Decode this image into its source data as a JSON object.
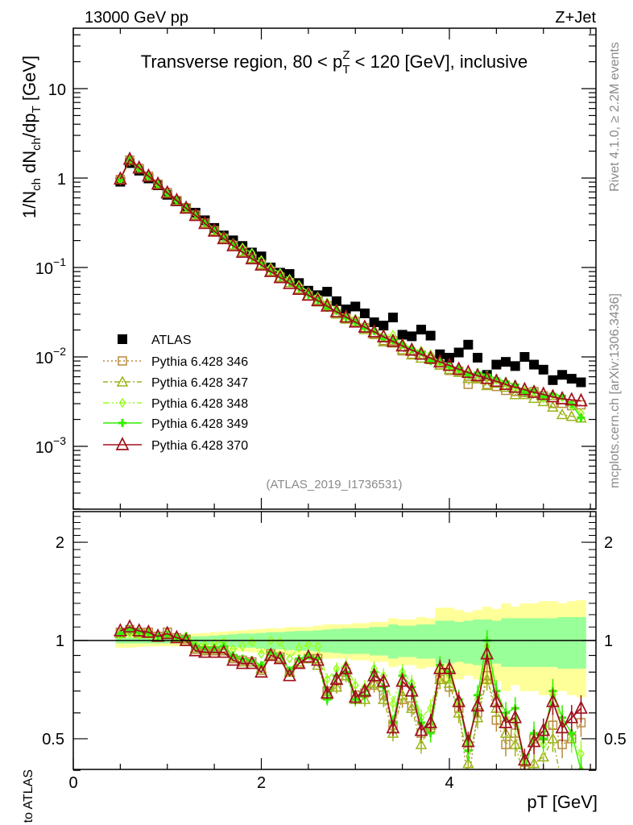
{
  "header": {
    "left": "13000 GeV pp",
    "right": "Z+Jet"
  },
  "title": {
    "pre": "Transverse region, 80 < p",
    "sub": "T",
    "sup": "Z",
    "post": " < 120 [GeV], inclusive"
  },
  "ylabel": {
    "p1": "1/N",
    "s1": "ch",
    "p2": " dN",
    "s2": "ch",
    "p3": "/dp",
    "s3": "T",
    "p4": " [GeV]"
  },
  "ratio_ylabel": "Ratio to ATLAS",
  "xlabel": {
    "p": "p",
    "sub": "T",
    "unit": " [GeV]"
  },
  "side": {
    "rivet": "Rivet 4.1.0, ≥ 2.2M events",
    "mcplots": "mcplots.cern.ch [arXiv:1306.3436]"
  },
  "analysis_id": "(ATLAS_2019_I1736531)",
  "ticks": {
    "top_y": [
      {
        "v": 10,
        "base": "10",
        "exp": ""
      },
      {
        "v": 1,
        "base": "1",
        "exp": ""
      },
      {
        "v": 0.1,
        "base": "10",
        "exp": "−1"
      },
      {
        "v": 0.01,
        "base": "10",
        "exp": "−2"
      },
      {
        "v": 0.001,
        "base": "10",
        "exp": "−3"
      }
    ],
    "ratio_y": [
      {
        "v": 2,
        "label": "2"
      },
      {
        "v": 1,
        "label": "1"
      },
      {
        "v": 0.5,
        "label": "0.5"
      }
    ],
    "x": [
      {
        "v": 0,
        "label": "0"
      },
      {
        "v": 2,
        "label": "2"
      },
      {
        "v": 4,
        "label": "4"
      }
    ]
  },
  "chart_data": {
    "type": "scatter",
    "title": "Transverse region, 80 < pT^Z < 120 [GeV], inclusive",
    "xlabel": "pT [GeV]",
    "ylabel": "1/Nch dNch/dpT [GeV]",
    "ratio_ylabel": "Ratio to ATLAS",
    "xlim": [
      0,
      5.55
    ],
    "ylim": [
      0.0002,
      47
    ],
    "yscale": "log",
    "ratio_ylim": [
      0.4,
      2.48
    ],
    "ratio_yscale": "log",
    "legend_position": "lower-left",
    "x": [
      0.5,
      0.6,
      0.7,
      0.8,
      0.9,
      1.0,
      1.1,
      1.2,
      1.3,
      1.4,
      1.5,
      1.6,
      1.7,
      1.8,
      1.9,
      2.0,
      2.1,
      2.2,
      2.3,
      2.4,
      2.5,
      2.6,
      2.7,
      2.8,
      2.9,
      3.0,
      3.1,
      3.2,
      3.3,
      3.4,
      3.5,
      3.6,
      3.7,
      3.8,
      3.9,
      4.0,
      4.1,
      4.2,
      4.3,
      4.4,
      4.5,
      4.6,
      4.7,
      4.8,
      4.9,
      5.0,
      5.1,
      5.2,
      5.3,
      5.4
    ],
    "atlas": {
      "name": "ATLAS",
      "color": "#000000",
      "values": [
        0.91,
        1.47,
        1.21,
        0.99,
        0.83,
        0.65,
        0.55,
        0.46,
        0.41,
        0.337,
        0.277,
        0.228,
        0.201,
        0.174,
        0.147,
        0.133,
        0.1,
        0.0875,
        0.0846,
        0.067,
        0.055,
        0.049,
        0.0536,
        0.042,
        0.034,
        0.0366,
        0.0307,
        0.0244,
        0.0224,
        0.0276,
        0.0177,
        0.017,
        0.0202,
        0.0173,
        0.0107,
        0.0098,
        0.0112,
        0.0137,
        0.0098,
        0.0063,
        0.0082,
        0.0088,
        0.0079,
        0.01,
        0.0082,
        0.0072,
        0.0055,
        0.0063,
        0.0057,
        0.0052
      ],
      "band_inner_rel": [
        0.02,
        0.02,
        0.02,
        0.02,
        0.02,
        0.02,
        0.02,
        0.02,
        0.03,
        0.03,
        0.035,
        0.04,
        0.045,
        0.05,
        0.05,
        0.055,
        0.06,
        0.06,
        0.065,
        0.07,
        0.07,
        0.075,
        0.08,
        0.085,
        0.09,
        0.09,
        0.09,
        0.1,
        0.1,
        0.12,
        0.11,
        0.11,
        0.12,
        0.12,
        0.15,
        0.15,
        0.14,
        0.15,
        0.16,
        0.16,
        0.15,
        0.17,
        0.17,
        0.17,
        0.17,
        0.17,
        0.17,
        0.18,
        0.18,
        0.18
      ],
      "band_outer_rel": [
        0.05,
        0.05,
        0.045,
        0.04,
        0.04,
        0.04,
        0.04,
        0.04,
        0.05,
        0.055,
        0.06,
        0.065,
        0.07,
        0.075,
        0.08,
        0.085,
        0.09,
        0.09,
        0.1,
        0.1,
        0.1,
        0.11,
        0.12,
        0.12,
        0.12,
        0.13,
        0.13,
        0.14,
        0.14,
        0.17,
        0.16,
        0.16,
        0.18,
        0.17,
        0.26,
        0.26,
        0.24,
        0.22,
        0.24,
        0.27,
        0.25,
        0.3,
        0.27,
        0.3,
        0.3,
        0.32,
        0.32,
        0.3,
        0.32,
        0.33
      ],
      "band_inner_color": "#99ff99",
      "band_outer_color": "#ffff99"
    },
    "series": [
      {
        "name": "Pythia 6.428 346",
        "color": "#b88a3c",
        "marker": "square",
        "dash": "2,3",
        "ratio": [
          1.06,
          1.08,
          1.06,
          1.06,
          1.03,
          1.06,
          1.02,
          1.01,
          0.94,
          0.93,
          0.93,
          0.93,
          0.88,
          0.87,
          0.86,
          0.81,
          0.91,
          0.89,
          0.8,
          0.85,
          0.88,
          0.88,
          0.7,
          0.72,
          0.8,
          0.68,
          0.69,
          0.73,
          0.68,
          0.55,
          0.66,
          0.63,
          0.52,
          0.54,
          0.76,
          0.72,
          0.62,
          0.36,
          0.6,
          0.78,
          0.57,
          0.48,
          0.52,
          0.4,
          0.5,
          0.51,
          0.55,
          0.48,
          0.5,
          0.56
        ]
      },
      {
        "name": "Pythia 6.428 347",
        "color": "#9db319",
        "marker": "triangle",
        "dash": "6,3,2,3",
        "ratio": [
          1.05,
          1.07,
          1.05,
          1.05,
          1.03,
          1.05,
          1.02,
          1.02,
          0.95,
          0.94,
          0.94,
          0.94,
          0.89,
          0.86,
          0.86,
          0.82,
          0.9,
          0.88,
          0.8,
          0.86,
          0.88,
          0.84,
          0.68,
          0.72,
          0.78,
          0.66,
          0.66,
          0.74,
          0.66,
          0.52,
          0.68,
          0.62,
          0.48,
          0.55,
          0.76,
          0.74,
          0.6,
          0.42,
          0.58,
          0.76,
          0.62,
          0.52,
          0.48,
          0.38,
          0.42,
          0.44,
          0.5,
          0.36,
          0.38,
          0.4
        ]
      },
      {
        "name": "Pythia 6.428 348",
        "color": "#99ff22",
        "marker": "diamond",
        "dash": "8,3,2,3,2,3",
        "ratio": [
          1.04,
          1.05,
          1.04,
          1.04,
          1.02,
          1.05,
          1.02,
          1.03,
          0.98,
          0.97,
          0.98,
          0.99,
          0.94,
          0.96,
          0.99,
          0.91,
          1.0,
          0.99,
          0.88,
          0.95,
          0.97,
          0.96,
          0.76,
          0.82,
          0.84,
          0.73,
          0.72,
          0.82,
          0.78,
          0.64,
          0.8,
          0.74,
          0.58,
          0.62,
          0.8,
          0.78,
          0.64,
          0.48,
          0.66,
          0.96,
          0.68,
          0.58,
          0.56,
          0.42,
          0.5,
          0.48,
          0.68,
          0.56,
          0.5,
          0.45
        ]
      },
      {
        "name": "Pythia 6.428 349",
        "color": "#33ee00",
        "marker": "cross",
        "dash": "",
        "ratio": [
          1.05,
          1.08,
          1.06,
          1.05,
          1.03,
          1.04,
          1.02,
          1.03,
          0.96,
          0.95,
          0.95,
          0.96,
          0.9,
          0.88,
          0.87,
          0.84,
          0.92,
          0.9,
          0.81,
          0.88,
          0.9,
          0.88,
          0.66,
          0.78,
          0.8,
          0.66,
          0.68,
          0.8,
          0.72,
          0.56,
          0.78,
          0.72,
          0.56,
          0.52,
          0.84,
          0.8,
          0.66,
          0.46,
          0.68,
          1.0,
          0.7,
          0.6,
          0.62,
          0.4,
          0.52,
          0.5,
          0.7,
          0.58,
          0.52,
          0.4
        ]
      },
      {
        "name": "Pythia 6.428 370",
        "color": "#a0101e",
        "marker": "bigtriangle",
        "dash": "",
        "ratio": [
          1.07,
          1.1,
          1.07,
          1.06,
          1.03,
          1.05,
          1.02,
          1.0,
          0.93,
          0.92,
          0.92,
          0.92,
          0.87,
          0.85,
          0.85,
          0.8,
          0.9,
          0.88,
          0.78,
          0.85,
          0.89,
          0.87,
          0.69,
          0.76,
          0.82,
          0.67,
          0.7,
          0.78,
          0.75,
          0.54,
          0.75,
          0.7,
          0.53,
          0.56,
          0.82,
          0.82,
          0.65,
          0.49,
          0.63,
          0.91,
          0.65,
          0.56,
          0.58,
          0.43,
          0.49,
          0.53,
          0.65,
          0.54,
          0.58,
          0.62
        ]
      }
    ]
  }
}
